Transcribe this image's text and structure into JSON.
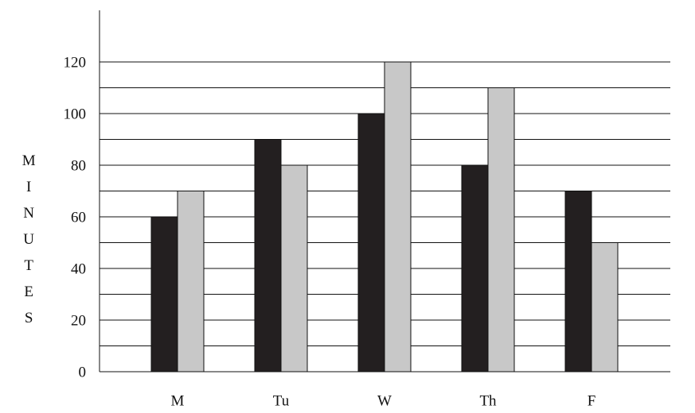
{
  "chart_data": {
    "type": "bar",
    "y_label": "MINUTES",
    "categories": [
      "M",
      "Tu",
      "W",
      "Th",
      "F"
    ],
    "series": [
      {
        "color": "#231f20",
        "values": [
          60,
          90,
          100,
          80,
          70
        ]
      },
      {
        "color": "#c8c8c8",
        "values": [
          70,
          80,
          120,
          110,
          50
        ]
      }
    ],
    "ylim": [
      0,
      140
    ],
    "yticks": [
      0,
      20,
      40,
      60,
      80,
      100,
      120
    ],
    "minor_yticks": [
      10,
      30,
      50,
      70,
      90,
      110
    ],
    "grid": true
  }
}
